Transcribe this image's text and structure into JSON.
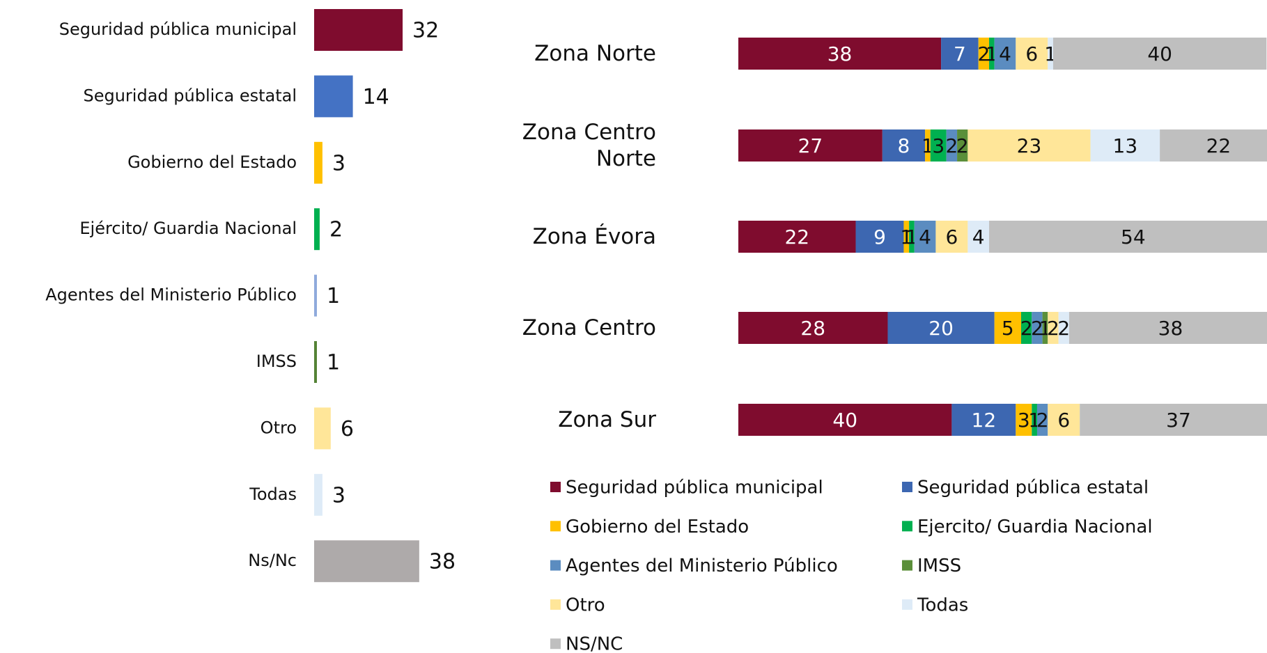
{
  "chart_data": [
    {
      "type": "bar",
      "orientation": "horizontal",
      "categories": [
        "Seguridad pública municipal",
        "Seguridad pública estatal",
        "Gobierno del Estado",
        "Ejército/ Guardia Nacional",
        "Agentes del Ministerio Público",
        "IMSS",
        "Otro",
        "Todas",
        "Ns/Nc"
      ],
      "values": [
        32,
        14,
        3,
        2,
        1,
        1,
        6,
        3,
        38
      ],
      "colors": [
        "#7f0c2e",
        "#4472c4",
        "#ffc000",
        "#00b050",
        "#8faadc",
        "#548235",
        "#ffe699",
        "#deebf7",
        "#aeaaaa"
      ]
    },
    {
      "type": "stacked_bar",
      "orientation": "horizontal",
      "categories": [
        "Zona Norte",
        "Zona Centro Norte",
        "Zona Évora",
        "Zona Centro",
        "Zona Sur"
      ],
      "series": [
        {
          "name": "Seguridad pública municipal",
          "color": "#7f0c2e",
          "values": [
            38,
            27,
            22,
            28,
            40
          ]
        },
        {
          "name": "Seguridad pública estatal",
          "color": "#3d67b1",
          "values": [
            7,
            8,
            9,
            20,
            12
          ]
        },
        {
          "name": "Gobierno del Estado",
          "color": "#ffc000",
          "values": [
            2,
            1,
            1,
            5,
            3
          ]
        },
        {
          "name": "Ejercito/ Guardia Nacional",
          "color": "#00b050",
          "values": [
            1,
            3,
            1,
            2,
            1
          ]
        },
        {
          "name": "Agentes del Ministerio Público",
          "color": "#5b8cc0",
          "values": [
            4,
            2,
            4,
            2,
            2
          ]
        },
        {
          "name": "IMSS",
          "color": "#5b8f3a",
          "values": [
            null,
            2,
            null,
            1,
            null
          ]
        },
        {
          "name": "Otro",
          "color": "#ffe699",
          "values": [
            6,
            23,
            6,
            2,
            6
          ]
        },
        {
          "name": "Todas",
          "color": "#deebf7",
          "values": [
            1,
            13,
            4,
            2,
            null
          ]
        },
        {
          "name": "NS/NC",
          "color": "#bfbfbf",
          "values": [
            40,
            22,
            54,
            38,
            37
          ]
        }
      ]
    }
  ]
}
